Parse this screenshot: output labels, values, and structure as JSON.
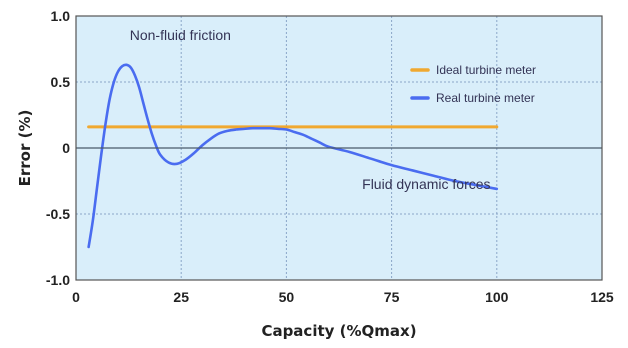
{
  "chart_data": {
    "type": "line",
    "title": "",
    "xlabel": "Capacity (%Qmax)",
    "ylabel": "Error  (%)",
    "xlim": [
      0,
      125
    ],
    "ylim": [
      -1.0,
      1.0
    ],
    "x_ticks": [
      0,
      25,
      50,
      75,
      100,
      125
    ],
    "x_tick_labels": [
      "0",
      "25",
      "50",
      "75",
      "100",
      "125"
    ],
    "y_ticks": [
      -1.0,
      -0.5,
      0,
      0.5,
      1.0
    ],
    "y_tick_labels": [
      "-1.0",
      "-0.5",
      "0",
      "0.5",
      "1.0"
    ],
    "grid": true,
    "background_color": "#d9eefa",
    "legend_position": "top-right",
    "series": [
      {
        "name": "Ideal turbine meter",
        "color": "#f0a830",
        "x": [
          3,
          100
        ],
        "y": [
          0.16,
          0.16
        ]
      },
      {
        "name": "Real turbine meter",
        "color": "#4a6cf0",
        "x": [
          3,
          4,
          5,
          6,
          7,
          8,
          9,
          10,
          11,
          12,
          13,
          14,
          15,
          16,
          17,
          18,
          19,
          20,
          22,
          24,
          26,
          28,
          30,
          32,
          34,
          36,
          38,
          40,
          42,
          44,
          46,
          48,
          50,
          52,
          54,
          56,
          58,
          60,
          65,
          70,
          75,
          80,
          85,
          90,
          95,
          100
        ],
        "y": [
          -0.75,
          -0.55,
          -0.3,
          -0.05,
          0.18,
          0.37,
          0.5,
          0.58,
          0.62,
          0.63,
          0.61,
          0.55,
          0.46,
          0.34,
          0.22,
          0.11,
          0.02,
          -0.05,
          -0.11,
          -0.12,
          -0.09,
          -0.04,
          0.02,
          0.07,
          0.11,
          0.13,
          0.14,
          0.145,
          0.15,
          0.15,
          0.15,
          0.145,
          0.14,
          0.12,
          0.1,
          0.07,
          0.04,
          0.01,
          -0.03,
          -0.08,
          -0.13,
          -0.17,
          -0.21,
          -0.25,
          -0.28,
          -0.31
        ]
      }
    ],
    "annotations": [
      {
        "text": "Non-fluid friction",
        "x": 18,
        "y": 0.82
      },
      {
        "text": "Fluid dynamic forces",
        "x": 68,
        "y": -0.31
      }
    ]
  }
}
